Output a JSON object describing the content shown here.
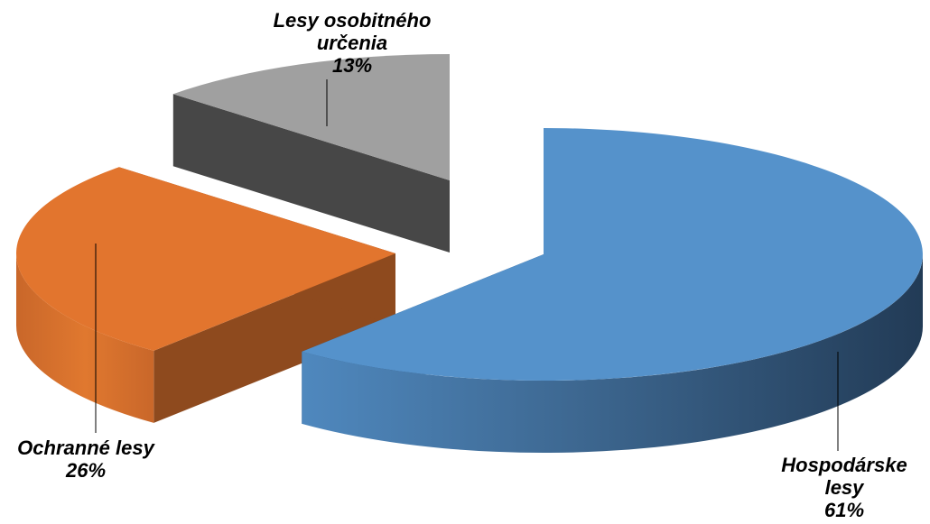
{
  "chart_data": {
    "type": "pie",
    "style": "3d-exploded",
    "slices": [
      {
        "category": [
          "Hospodárske",
          "lesy"
        ],
        "value": 61,
        "pct_label": "61%",
        "color": "#5592CB",
        "side_color": "#2C4A6A"
      },
      {
        "category": [
          "Ochranné lesy"
        ],
        "value": 26,
        "pct_label": "26%",
        "color": "#E2752E",
        "side_color": "#8E4A1E"
      },
      {
        "category": [
          "Lesy osobitného",
          "určenia"
        ],
        "value": 13,
        "pct_label": "13%",
        "color": "#A0A0A0",
        "side_color": "#474747"
      }
    ],
    "legend": "none"
  }
}
